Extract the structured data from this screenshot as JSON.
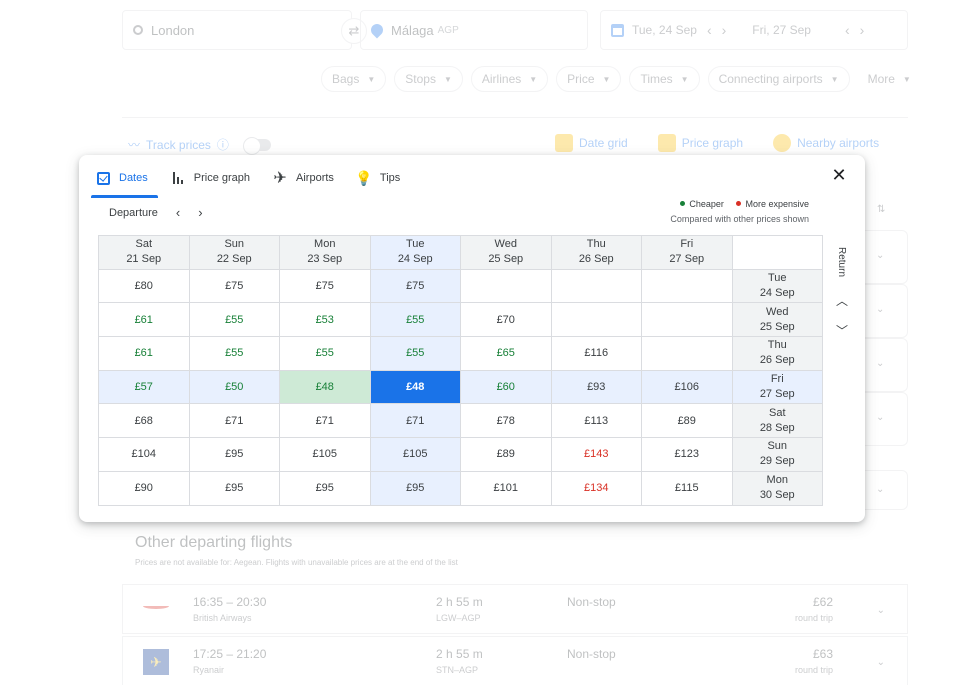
{
  "search": {
    "origin": "London",
    "destination": "Málaga",
    "destination_code": "AGP",
    "depart_date": "Tue, 24 Sep",
    "return_date": "Fri, 27 Sep",
    "swap_icon": "⇄"
  },
  "filters": [
    "Bags",
    "Stops",
    "Airlines",
    "Price",
    "Times",
    "Connecting airports",
    "More"
  ],
  "track_prices_label": "Track prices",
  "tools": [
    "Date grid",
    "Price graph",
    "Nearby airports"
  ],
  "modal": {
    "tabs": [
      "Dates",
      "Price graph",
      "Airports",
      "Tips"
    ],
    "close_glyph": "✕",
    "departure_label": "Departure",
    "prev_glyph": "‹",
    "next_glyph": "›",
    "legend": {
      "cheaper": "Cheaper",
      "more_expensive": "More expensive",
      "note": "Compared with other prices shown",
      "cheaper_color": "#188038",
      "expensive_color": "#d93025"
    },
    "return_label": "Return",
    "up_glyph": "⌃",
    "down_glyph": "⌄",
    "columns": [
      {
        "day": "Sat",
        "date": "21 Sep"
      },
      {
        "day": "Sun",
        "date": "22 Sep"
      },
      {
        "day": "Mon",
        "date": "23 Sep"
      },
      {
        "day": "Tue",
        "date": "24 Sep"
      },
      {
        "day": "Wed",
        "date": "25 Sep"
      },
      {
        "day": "Thu",
        "date": "26 Sep"
      },
      {
        "day": "Fri",
        "date": "27 Sep"
      }
    ],
    "rows": [
      {
        "day": "Tue",
        "date": "24 Sep",
        "prices": [
          "£80",
          "£75",
          "£75",
          "£75",
          "",
          "",
          ""
        ]
      },
      {
        "day": "Wed",
        "date": "25 Sep",
        "prices": [
          "£61",
          "£55",
          "£53",
          "£55",
          "£70",
          "",
          ""
        ]
      },
      {
        "day": "Thu",
        "date": "26 Sep",
        "prices": [
          "£61",
          "£55",
          "£55",
          "£55",
          "£65",
          "£116",
          ""
        ]
      },
      {
        "day": "Fri",
        "date": "27 Sep",
        "prices": [
          "£57",
          "£50",
          "£48",
          "£48",
          "£60",
          "£93",
          "£106"
        ]
      },
      {
        "day": "Sat",
        "date": "28 Sep",
        "prices": [
          "£68",
          "£71",
          "£71",
          "£71",
          "£78",
          "£113",
          "£89"
        ]
      },
      {
        "day": "Sun",
        "date": "29 Sep",
        "prices": [
          "£104",
          "£95",
          "£105",
          "£105",
          "£89",
          "£143",
          "£123"
        ]
      },
      {
        "day": "Mon",
        "date": "30 Sep",
        "prices": [
          "£90",
          "£95",
          "£95",
          "£95",
          "£101",
          "£134",
          "£115"
        ]
      }
    ],
    "cell_styles": [
      [
        "",
        "",
        "",
        "",
        "",
        "",
        ""
      ],
      [
        "cheap",
        "cheap",
        "cheap",
        "cheap",
        "",
        "",
        ""
      ],
      [
        "cheap",
        "cheap",
        "cheap",
        "cheap",
        "cheap",
        "",
        ""
      ],
      [
        "cheap",
        "cheap",
        "cheapest",
        "selected",
        "cheap",
        "",
        ""
      ],
      [
        "",
        "",
        "",
        "",
        "",
        "",
        ""
      ],
      [
        "",
        "",
        "",
        "",
        "",
        "exp",
        ""
      ],
      [
        "",
        "",
        "",
        "",
        "",
        "exp",
        ""
      ]
    ]
  },
  "other_flights": {
    "title": "Other departing flights",
    "subtitle": "Prices are not available for: Aegean. Flights with unavailable prices are at the end of the list",
    "flights": [
      {
        "time": "16:35 – 20:30",
        "airline": "British Airways",
        "duration": "2 h 55 m",
        "route": "LGW–AGP",
        "stops": "Non-stop",
        "price": "£62",
        "trip": "round trip"
      },
      {
        "time": "17:25 – 21:20",
        "airline": "Ryanair",
        "duration": "2 h 55 m",
        "route": "STN–AGP",
        "stops": "Non-stop",
        "price": "£63",
        "trip": "round trip"
      }
    ]
  }
}
